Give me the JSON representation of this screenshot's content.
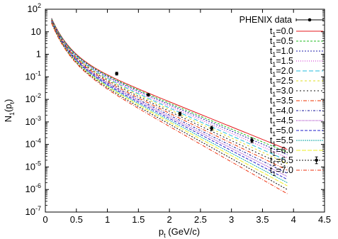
{
  "chart_data": {
    "type": "line",
    "xlabel": "p_t (GeV/c)",
    "ylabel": "N_1(p_t)",
    "xlim": [
      0,
      4.5
    ],
    "ylim": [
      1e-07,
      100
    ],
    "yscale": "log",
    "grid": false,
    "legend_position": "top-right",
    "x_ticks": [
      "0",
      "0.5",
      "1",
      "1.5",
      "2",
      "2.5",
      "3",
      "3.5",
      "4",
      "4.5"
    ],
    "y_ticks": [
      {
        "base": "10",
        "exp": "-7",
        "value": 1e-07
      },
      {
        "base": "10",
        "exp": "-6",
        "value": 1e-06
      },
      {
        "base": "10",
        "exp": "-5",
        "value": 1e-05
      },
      {
        "base": "10",
        "exp": "-4",
        "value": 0.0001
      },
      {
        "base": "10",
        "exp": "-3",
        "value": 0.001
      },
      {
        "base": "10",
        "exp": "-2",
        "value": 0.01
      },
      {
        "base": "10",
        "exp": "-1",
        "value": 0.1
      },
      {
        "base": "1",
        "exp": "",
        "value": 1
      },
      {
        "base": "10",
        "exp": "",
        "value": 10
      },
      {
        "base": "10",
        "exp": "2",
        "value": 100
      }
    ],
    "data_series": {
      "name": "PHENIX data",
      "points": [
        {
          "x": 1.15,
          "y": 0.14,
          "err_low": 0.12,
          "err_high": 0.16
        },
        {
          "x": 1.66,
          "y": 0.016,
          "err_low": 0.014,
          "err_high": 0.018
        },
        {
          "x": 2.17,
          "y": 0.0023,
          "err_low": 0.0019,
          "err_high": 0.0027
        },
        {
          "x": 2.68,
          "y": 0.00052,
          "err_low": 0.00042,
          "err_high": 0.00064
        },
        {
          "x": 3.33,
          "y": 0.00015,
          "err_low": 0.00012,
          "err_high": 0.00019
        },
        {
          "x": 4.37,
          "y": 2e-05,
          "err_low": 1.4e-05,
          "err_high": 2.8e-05
        }
      ]
    },
    "series": [
      {
        "name": "t_1=0.0",
        "color": "#e41a1c",
        "dash": "",
        "y0": 40,
        "y_end": 6e-05
      },
      {
        "name": "t_1=0.5",
        "color": "#22bb22",
        "dash": "3,2",
        "y0": 39,
        "y_end": 4.5e-05
      },
      {
        "name": "t_1=1.0",
        "color": "#1a1aaa",
        "dash": "2,2",
        "y0": 38,
        "y_end": 3.5e-05
      },
      {
        "name": "t_1=1.5",
        "color": "#cc22cc",
        "dash": "1,2",
        "y0": 37,
        "y_end": 2.6e-05
      },
      {
        "name": "t_1=2.0",
        "color": "#22bbdd",
        "dash": "6,3",
        "y0": 36,
        "y_end": 1.9e-05
      },
      {
        "name": "t_1=2.5",
        "color": "#dddd22",
        "dash": "3,3",
        "y0": 35,
        "y_end": 1.4e-05
      },
      {
        "name": "t_1=3.0",
        "color": "#111111",
        "dash": "2,3",
        "y0": 34,
        "y_end": 1e-05
      },
      {
        "name": "t_1=3.5",
        "color": "#ee3300",
        "dash": "5,2,1,2",
        "y0": 32,
        "y_end": 7.2e-06
      },
      {
        "name": "t_1=4.0",
        "color": "#111199",
        "dash": "3,2,1,2",
        "y0": 30,
        "y_end": 5.2e-06
      },
      {
        "name": "t_1=4.5",
        "color": "#9922bb",
        "dash": "1,1",
        "y0": 29,
        "y_end": 3.8e-06
      },
      {
        "name": "t_1=5.0",
        "color": "#2222cc",
        "dash": "4,2",
        "y0": 28,
        "y_end": 2.8e-06
      },
      {
        "name": "t_1=5.5",
        "color": "#11aaaa",
        "dash": "2,1",
        "y0": 27,
        "y_end": 2e-06
      },
      {
        "name": "t_1=6.0",
        "color": "#eeee22",
        "dash": "6,2",
        "y0": 26,
        "y_end": 1.45e-06
      },
      {
        "name": "t_1=6.5",
        "color": "#111111",
        "dash": "2,2",
        "y0": 25,
        "y_end": 1e-06
      },
      {
        "name": "t_1=7.0",
        "color": "#ee3311",
        "dash": "5,2,1,2",
        "y0": 24,
        "y_end": 6.5e-07
      }
    ],
    "curve_x_start": 0.1,
    "curve_x_end": 3.9
  }
}
